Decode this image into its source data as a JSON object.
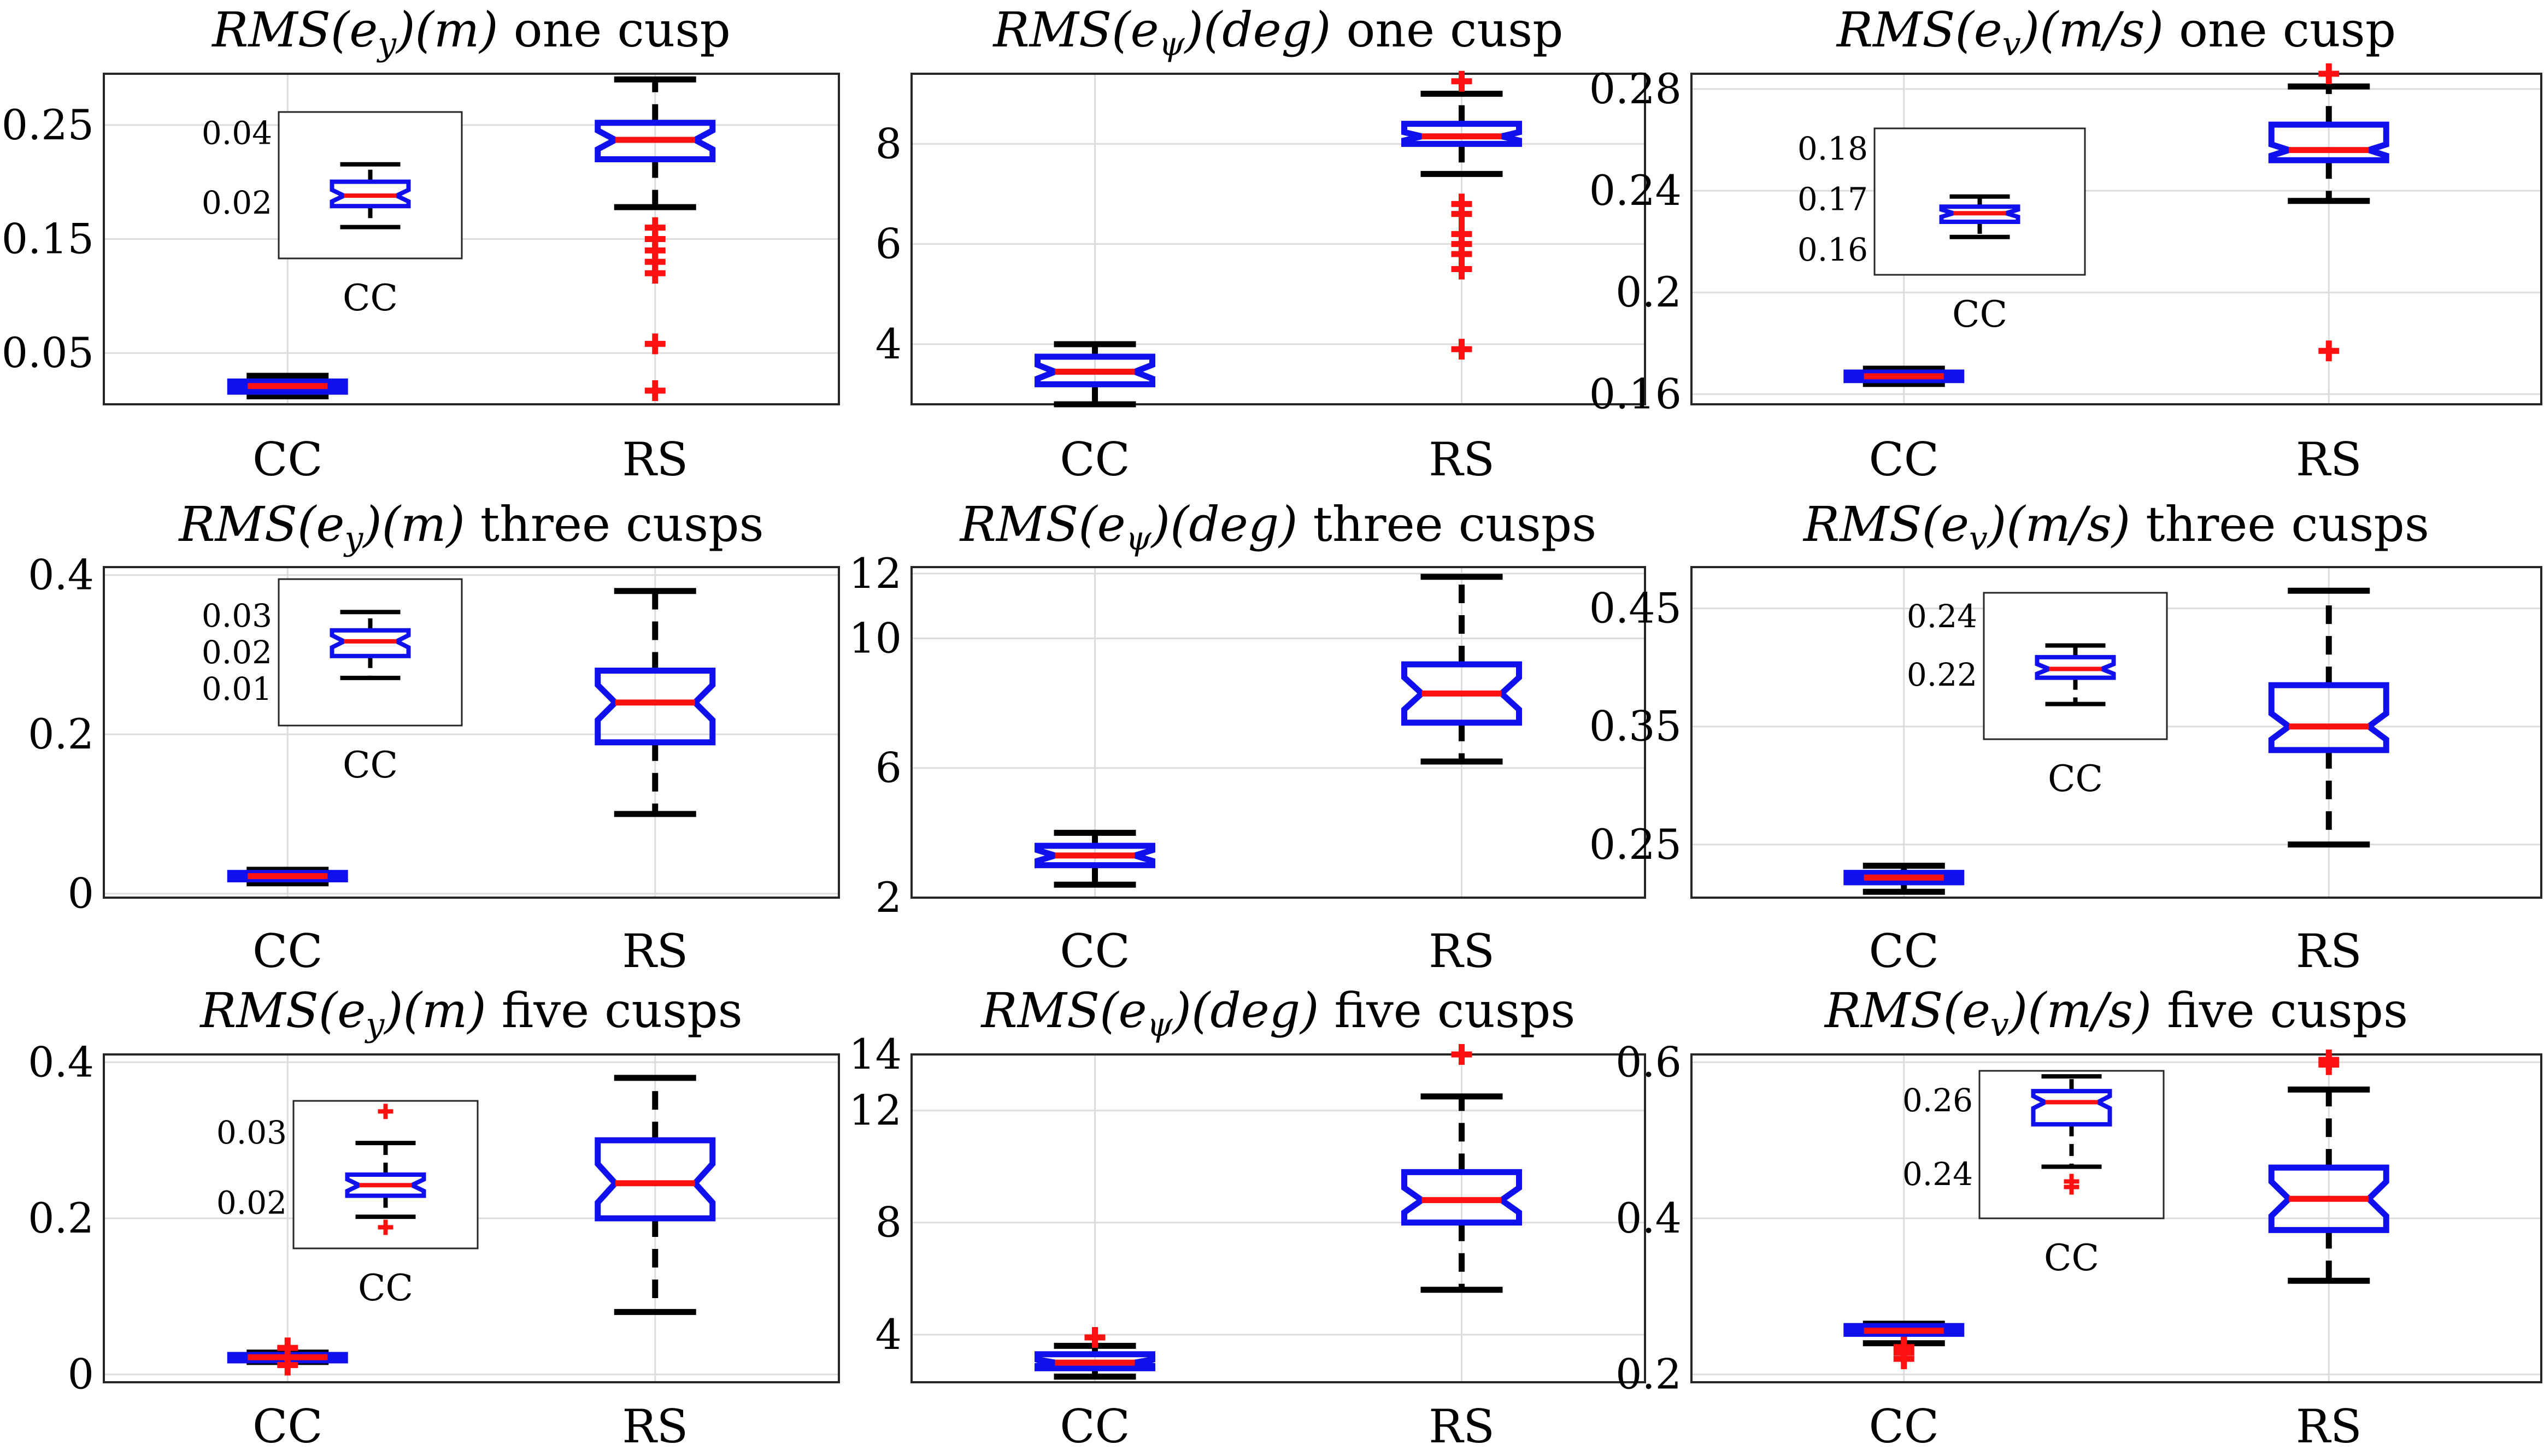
{
  "chart_data": [
    {
      "type": "boxplot",
      "title": {
        "metric": "RMS",
        "arg": "e",
        "sub": "y",
        "unit": "(m)",
        "scenario": "one cusp"
      },
      "categories": [
        "CC",
        "RS"
      ],
      "ylim": [
        0.005,
        0.295
      ],
      "yticks": [
        0.05,
        0.15,
        0.25
      ],
      "ytick_labels": [
        "0.05",
        "0.15",
        "0.25"
      ],
      "boxes": [
        {
          "label": "CC",
          "min": 0.012,
          "q1": 0.016,
          "median": 0.021,
          "q3": 0.025,
          "max": 0.03,
          "outliers": []
        },
        {
          "label": "RS",
          "min": 0.178,
          "q1": 0.22,
          "median": 0.237,
          "q3": 0.252,
          "max": 0.29,
          "outliers": [
            0.16,
            0.15,
            0.14,
            0.13,
            0.12,
            0.058,
            0.017
          ]
        }
      ],
      "inset": {
        "category": "CC",
        "ylim": [
          0.004,
          0.046
        ],
        "yticks": [
          0.02,
          0.04
        ],
        "ytick_labels": [
          "0.02",
          "0.04"
        ],
        "box": {
          "min": 0.013,
          "q1": 0.019,
          "median": 0.022,
          "q3": 0.026,
          "max": 0.031,
          "outliers": []
        }
      }
    },
    {
      "type": "boxplot",
      "title": {
        "metric": "RMS",
        "arg": "e",
        "sub": "ψ",
        "unit": "(deg)",
        "scenario": "one cusp"
      },
      "categories": [
        "CC",
        "RS"
      ],
      "ylim": [
        2.8,
        9.4
      ],
      "yticks": [
        4,
        6,
        8
      ],
      "ytick_labels": [
        "4",
        "6",
        "8"
      ],
      "boxes": [
        {
          "label": "CC",
          "min": 2.8,
          "q1": 3.2,
          "median": 3.45,
          "q3": 3.75,
          "max": 4.0,
          "outliers": []
        },
        {
          "label": "RS",
          "min": 7.4,
          "q1": 8.0,
          "median": 8.15,
          "q3": 8.4,
          "max": 9.0,
          "outliers": [
            9.25,
            6.8,
            6.6,
            6.2,
            6.0,
            5.8,
            5.5,
            3.9
          ]
        }
      ]
    },
    {
      "type": "boxplot",
      "title": {
        "metric": "RMS",
        "arg": "e",
        "sub": "v",
        "unit": "(m/s)",
        "scenario": "one cusp"
      },
      "categories": [
        "CC",
        "RS"
      ],
      "ylim": [
        0.156,
        0.286
      ],
      "yticks": [
        0.16,
        0.2,
        0.24,
        0.28
      ],
      "ytick_labels": [
        "0.16",
        "0.2",
        "0.24",
        "0.28"
      ],
      "boxes": [
        {
          "label": "CC",
          "min": 0.164,
          "q1": 0.1655,
          "median": 0.167,
          "q3": 0.1685,
          "max": 0.17,
          "outliers": []
        },
        {
          "label": "RS",
          "min": 0.236,
          "q1": 0.252,
          "median": 0.256,
          "q3": 0.266,
          "max": 0.281,
          "outliers": [
            0.286,
            0.177
          ]
        }
      ],
      "inset": {
        "category": "CC",
        "ylim": [
          0.155,
          0.184
        ],
        "yticks": [
          0.16,
          0.17,
          0.18
        ],
        "ytick_labels": [
          "0.16",
          "0.17",
          "0.18"
        ],
        "box": {
          "min": 0.1625,
          "q1": 0.1655,
          "median": 0.1672,
          "q3": 0.1685,
          "max": 0.1705,
          "outliers": []
        }
      }
    },
    {
      "type": "boxplot",
      "title": {
        "metric": "RMS",
        "arg": "e",
        "sub": "y",
        "unit": "(m)",
        "scenario": "three cusps"
      },
      "categories": [
        "CC",
        "RS"
      ],
      "ylim": [
        -0.005,
        0.41
      ],
      "yticks": [
        0,
        0.2,
        0.4
      ],
      "ytick_labels": [
        "0",
        "0.2",
        "0.4"
      ],
      "boxes": [
        {
          "label": "CC",
          "min": 0.013,
          "q1": 0.018,
          "median": 0.022,
          "q3": 0.026,
          "max": 0.03,
          "outliers": []
        },
        {
          "label": "RS",
          "min": 0.1,
          "q1": 0.19,
          "median": 0.24,
          "q3": 0.28,
          "max": 0.38,
          "outliers": []
        }
      ],
      "inset": {
        "category": "CC",
        "ylim": [
          0.0,
          0.04
        ],
        "yticks": [
          0.01,
          0.02,
          0.03
        ],
        "ytick_labels": [
          "0.01",
          "0.02",
          "0.03"
        ],
        "box": {
          "min": 0.013,
          "q1": 0.019,
          "median": 0.023,
          "q3": 0.026,
          "max": 0.031,
          "outliers": []
        }
      }
    },
    {
      "type": "boxplot",
      "title": {
        "metric": "RMS",
        "arg": "e",
        "sub": "ψ",
        "unit": "(deg)",
        "scenario": "three cusps"
      },
      "categories": [
        "CC",
        "RS"
      ],
      "ylim": [
        2.0,
        12.2
      ],
      "yticks": [
        2,
        6,
        10,
        12
      ],
      "ytick_labels": [
        "2",
        "6",
        "10",
        "12"
      ],
      "boxes": [
        {
          "label": "CC",
          "min": 2.4,
          "q1": 3.0,
          "median": 3.3,
          "q3": 3.6,
          "max": 4.0,
          "outliers": []
        },
        {
          "label": "RS",
          "min": 6.2,
          "q1": 7.4,
          "median": 8.3,
          "q3": 9.2,
          "max": 11.9,
          "outliers": []
        }
      ]
    },
    {
      "type": "boxplot",
      "title": {
        "metric": "RMS",
        "arg": "e",
        "sub": "v",
        "unit": "(m/s)",
        "scenario": "three cusps"
      },
      "categories": [
        "CC",
        "RS"
      ],
      "ylim": [
        0.205,
        0.485
      ],
      "yticks": [
        0.25,
        0.35,
        0.45
      ],
      "ytick_labels": [
        "0.25",
        "0.35",
        "0.45"
      ],
      "boxes": [
        {
          "label": "CC",
          "min": 0.21,
          "q1": 0.218,
          "median": 0.222,
          "q3": 0.226,
          "max": 0.232,
          "outliers": []
        },
        {
          "label": "RS",
          "min": 0.25,
          "q1": 0.33,
          "median": 0.35,
          "q3": 0.385,
          "max": 0.465,
          "outliers": []
        }
      ],
      "inset": {
        "category": "CC",
        "ylim": [
          0.198,
          0.248
        ],
        "yticks": [
          0.22,
          0.24
        ],
        "ytick_labels": [
          "0.22",
          "0.24"
        ],
        "box": {
          "min": 0.21,
          "q1": 0.219,
          "median": 0.222,
          "q3": 0.226,
          "max": 0.23,
          "outliers": []
        }
      }
    },
    {
      "type": "boxplot",
      "title": {
        "metric": "RMS",
        "arg": "e",
        "sub": "y",
        "unit": "(m)",
        "scenario": "five cusps"
      },
      "categories": [
        "CC",
        "RS"
      ],
      "ylim": [
        -0.01,
        0.41
      ],
      "yticks": [
        0,
        0.2,
        0.4
      ],
      "ytick_labels": [
        "0",
        "0.2",
        "0.4"
      ],
      "boxes": [
        {
          "label": "CC",
          "min": 0.016,
          "q1": 0.018,
          "median": 0.022,
          "q3": 0.025,
          "max": 0.028,
          "outliers": [
            0.034,
            0.012
          ]
        },
        {
          "label": "RS",
          "min": 0.08,
          "q1": 0.2,
          "median": 0.245,
          "q3": 0.3,
          "max": 0.38,
          "outliers": []
        }
      ],
      "inset": {
        "category": "CC",
        "ylim": [
          0.0135,
          0.0345
        ],
        "yticks": [
          0.02,
          0.03
        ],
        "ytick_labels": [
          "0.02",
          "0.03"
        ],
        "box": {
          "min": 0.018,
          "q1": 0.021,
          "median": 0.0225,
          "q3": 0.024,
          "max": 0.0285,
          "outliers": [
            0.033,
            0.0165
          ]
        }
      }
    },
    {
      "type": "boxplot",
      "title": {
        "metric": "RMS",
        "arg": "e",
        "sub": "ψ",
        "unit": "(deg)",
        "scenario": "five cusps"
      },
      "categories": [
        "CC",
        "RS"
      ],
      "ylim": [
        2.3,
        14.0
      ],
      "yticks": [
        4,
        8,
        12,
        14
      ],
      "ytick_labels": [
        "4",
        "8",
        "12",
        "14"
      ],
      "boxes": [
        {
          "label": "CC",
          "min": 2.5,
          "q1": 2.8,
          "median": 3.0,
          "q3": 3.3,
          "max": 3.6,
          "outliers": [
            3.9
          ]
        },
        {
          "label": "RS",
          "min": 5.6,
          "q1": 8.0,
          "median": 8.8,
          "q3": 9.8,
          "max": 12.5,
          "outliers": [
            14.0
          ]
        }
      ]
    },
    {
      "type": "boxplot",
      "title": {
        "metric": "RMS",
        "arg": "e",
        "sub": "v",
        "unit": "(m/s)",
        "scenario": "five cusps"
      },
      "categories": [
        "CC",
        "RS"
      ],
      "ylim": [
        0.19,
        0.61
      ],
      "yticks": [
        0.2,
        0.4,
        0.6
      ],
      "ytick_labels": [
        "0.2",
        "0.4",
        "0.6"
      ],
      "boxes": [
        {
          "label": "CC",
          "min": 0.24,
          "q1": 0.252,
          "median": 0.256,
          "q3": 0.262,
          "max": 0.265,
          "outliers": [
            0.235,
            0.228,
            0.22
          ]
        },
        {
          "label": "RS",
          "min": 0.32,
          "q1": 0.385,
          "median": 0.425,
          "q3": 0.465,
          "max": 0.565,
          "outliers": [
            0.603,
            0.597
          ]
        }
      ],
      "inset": {
        "category": "CC",
        "ylim": [
          0.228,
          0.268
        ],
        "yticks": [
          0.24,
          0.26
        ],
        "ytick_labels": [
          "0.24",
          "0.26"
        ],
        "box": {
          "min": 0.242,
          "q1": 0.2535,
          "median": 0.2595,
          "q3": 0.2625,
          "max": 0.2665,
          "outliers": [
            0.238,
            0.2365
          ]
        }
      }
    }
  ]
}
